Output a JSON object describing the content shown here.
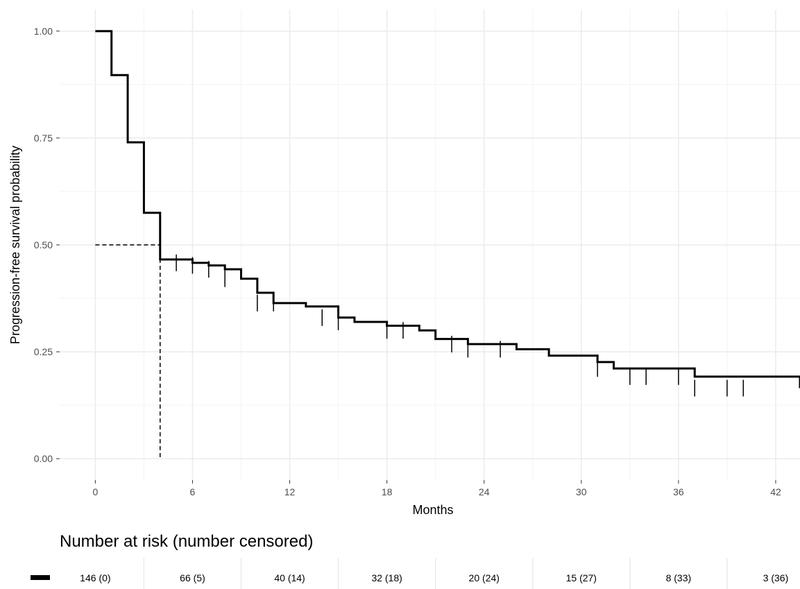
{
  "chart_data": {
    "type": "line",
    "step": true,
    "xlabel": "Months",
    "ylabel": "Progression-free survival probability",
    "xlim": [
      -2.2,
      43.5
    ],
    "ylim": [
      -0.05,
      1.05
    ],
    "x_ticks": [
      0,
      6,
      12,
      18,
      24,
      30,
      36,
      42
    ],
    "x_tick_labels": [
      "0",
      "6",
      "12",
      "18",
      "24",
      "30",
      "36",
      "42"
    ],
    "y_ticks": [
      0,
      0.25,
      0.5,
      0.75,
      1.0
    ],
    "y_tick_labels": [
      "0.00",
      "0.25",
      "0.50",
      "0.75",
      "1.00"
    ],
    "grid": true,
    "line_color": "#000000",
    "grid_color": "#ebebeb",
    "series": [
      {
        "steps": [
          [
            0,
            1.0
          ],
          [
            1,
            0.897
          ],
          [
            2,
            0.74
          ],
          [
            3,
            0.575
          ],
          [
            4,
            0.527
          ],
          [
            4,
            0.466
          ],
          [
            6,
            0.458
          ],
          [
            7,
            0.452
          ],
          [
            8,
            0.443
          ],
          [
            9,
            0.421
          ],
          [
            10,
            0.388
          ],
          [
            11,
            0.364
          ],
          [
            13,
            0.356
          ],
          [
            15,
            0.33
          ],
          [
            16,
            0.32
          ],
          [
            18,
            0.311
          ],
          [
            20,
            0.3
          ],
          [
            21,
            0.28
          ],
          [
            23,
            0.268
          ],
          [
            26,
            0.256
          ],
          [
            28,
            0.241
          ],
          [
            31,
            0.226
          ],
          [
            32,
            0.211
          ],
          [
            37,
            0.192
          ],
          [
            43.5,
            0.165
          ]
        ],
        "censor_points": [
          [
            5,
            0.458
          ],
          [
            6,
            0.452
          ],
          [
            7,
            0.443
          ],
          [
            8,
            0.421
          ],
          [
            10,
            0.364
          ],
          [
            11,
            0.364
          ],
          [
            14,
            0.33
          ],
          [
            15,
            0.32
          ],
          [
            18,
            0.3
          ],
          [
            19,
            0.3
          ],
          [
            22,
            0.268
          ],
          [
            23,
            0.256
          ],
          [
            25,
            0.256
          ],
          [
            31,
            0.211
          ],
          [
            33,
            0.192
          ],
          [
            34,
            0.192
          ],
          [
            36,
            0.192
          ],
          [
            37,
            0.165
          ],
          [
            39,
            0.165
          ],
          [
            40,
            0.165
          ]
        ]
      }
    ],
    "median": {
      "x": 4,
      "y": 0.5
    },
    "risk_table": {
      "title": "Number at risk (number censored)",
      "times": [
        0,
        6,
        12,
        18,
        24,
        30,
        36,
        42
      ],
      "labels": [
        "146 (0)",
        "66 (5)",
        "40 (14)",
        "32 (18)",
        "20 (24)",
        "15 (27)",
        "8 (33)",
        "3 (36)"
      ]
    }
  }
}
